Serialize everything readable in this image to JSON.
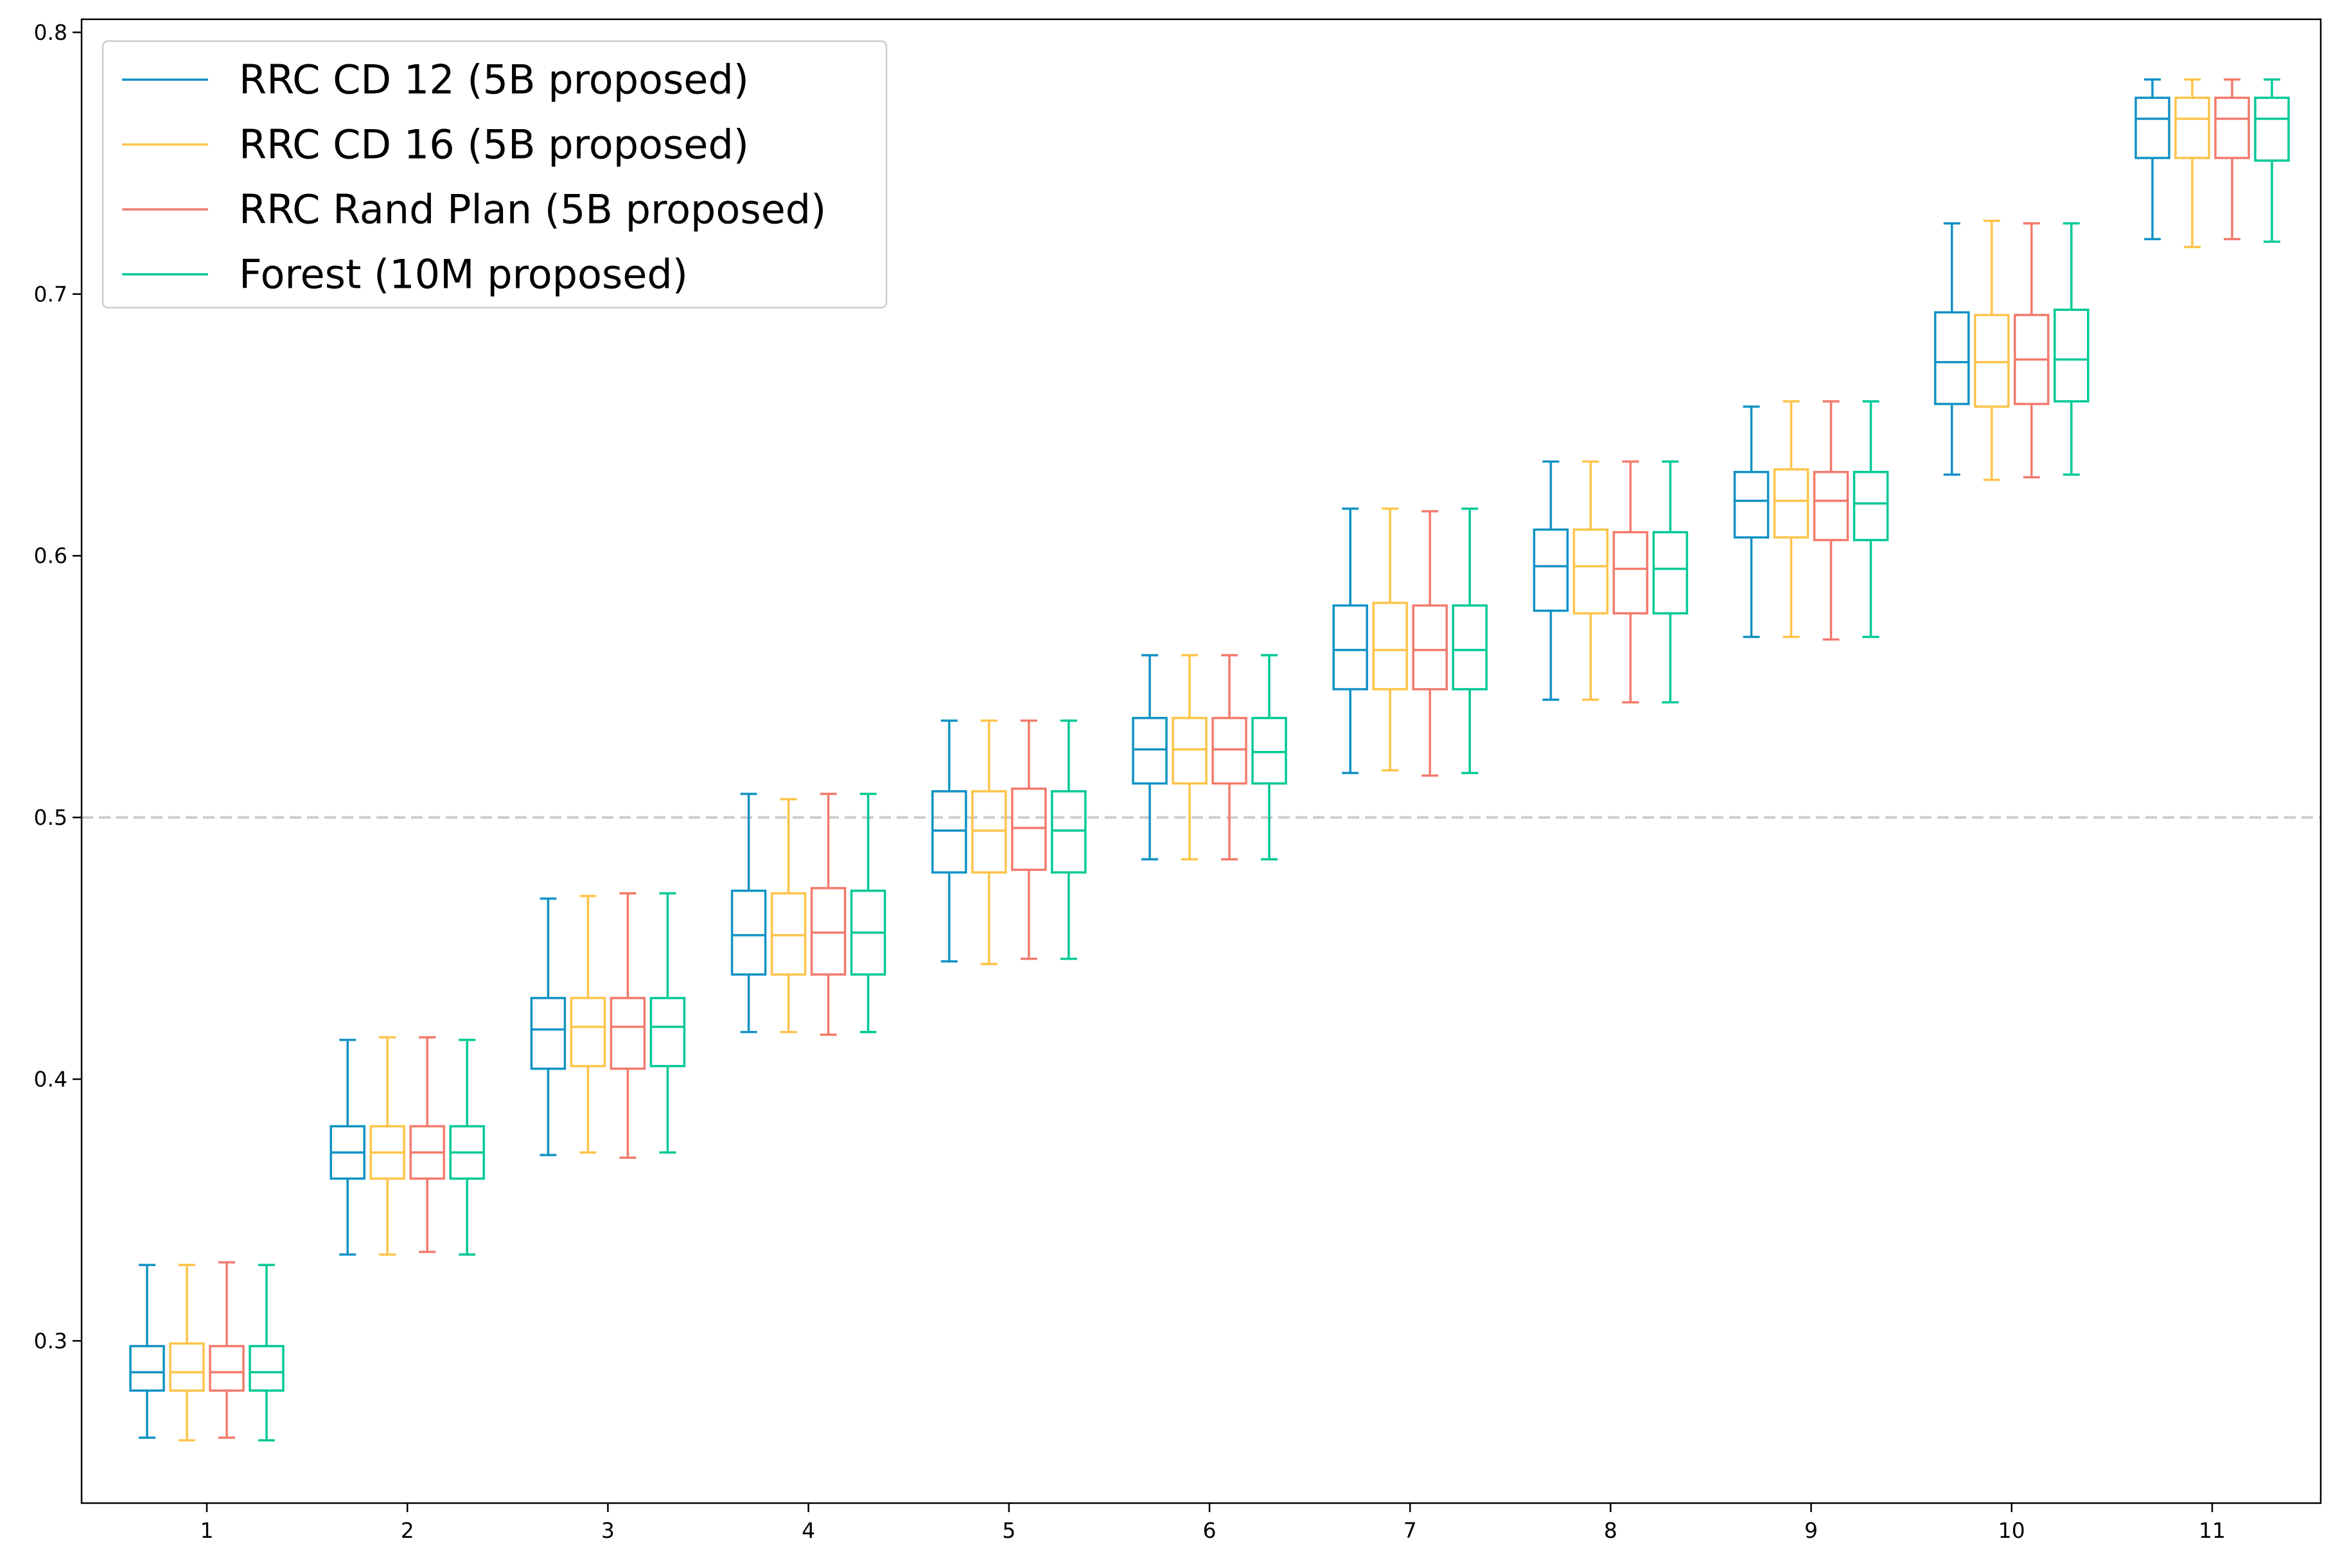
{
  "chart_data": {
    "type": "box",
    "title": "",
    "xlabel": "",
    "ylabel": "",
    "categories": [
      "1",
      "2",
      "3",
      "4",
      "5",
      "6",
      "7",
      "8",
      "9",
      "10",
      "11"
    ],
    "ylim": [
      0.238,
      0.805
    ],
    "yticks": [
      "0.3",
      "0.4",
      "0.5",
      "0.6",
      "0.7",
      "0.8"
    ],
    "reference_line": {
      "y": 0.5,
      "style": "dashed",
      "color": "#cccccc"
    },
    "grid": false,
    "legend": {
      "placement": "top-left"
    },
    "series": [
      {
        "name": "RRC CD 12 (5B proposed)",
        "color": "#1192c4",
        "boxes": [
          {
            "whislo": 0.263,
            "q1": 0.281,
            "med": 0.288,
            "q3": 0.298,
            "whishi": 0.329
          },
          {
            "whislo": 0.333,
            "q1": 0.362,
            "med": 0.372,
            "q3": 0.382,
            "whishi": 0.415
          },
          {
            "whislo": 0.371,
            "q1": 0.404,
            "med": 0.419,
            "q3": 0.431,
            "whishi": 0.469
          },
          {
            "whislo": 0.418,
            "q1": 0.44,
            "med": 0.455,
            "q3": 0.472,
            "whishi": 0.509
          },
          {
            "whislo": 0.445,
            "q1": 0.479,
            "med": 0.495,
            "q3": 0.51,
            "whishi": 0.537
          },
          {
            "whislo": 0.484,
            "q1": 0.513,
            "med": 0.526,
            "q3": 0.538,
            "whishi": 0.562
          },
          {
            "whislo": 0.517,
            "q1": 0.549,
            "med": 0.564,
            "q3": 0.581,
            "whishi": 0.618
          },
          {
            "whislo": 0.545,
            "q1": 0.579,
            "med": 0.596,
            "q3": 0.61,
            "whishi": 0.636
          },
          {
            "whislo": 0.569,
            "q1": 0.607,
            "med": 0.621,
            "q3": 0.632,
            "whishi": 0.657
          },
          {
            "whislo": 0.631,
            "q1": 0.658,
            "med": 0.674,
            "q3": 0.693,
            "whishi": 0.727
          },
          {
            "whislo": 0.721,
            "q1": 0.752,
            "med": 0.767,
            "q3": 0.775,
            "whishi": 0.782
          }
        ]
      },
      {
        "name": "RRC CD 16 (5B proposed)",
        "color": "#fec349",
        "boxes": [
          {
            "whislo": 0.262,
            "q1": 0.281,
            "med": 0.288,
            "q3": 0.299,
            "whishi": 0.329
          },
          {
            "whislo": 0.333,
            "q1": 0.362,
            "med": 0.372,
            "q3": 0.382,
            "whishi": 0.416
          },
          {
            "whislo": 0.372,
            "q1": 0.405,
            "med": 0.42,
            "q3": 0.431,
            "whishi": 0.47
          },
          {
            "whislo": 0.418,
            "q1": 0.44,
            "med": 0.455,
            "q3": 0.471,
            "whishi": 0.507
          },
          {
            "whislo": 0.444,
            "q1": 0.479,
            "med": 0.495,
            "q3": 0.51,
            "whishi": 0.537
          },
          {
            "whislo": 0.484,
            "q1": 0.513,
            "med": 0.526,
            "q3": 0.538,
            "whishi": 0.562
          },
          {
            "whislo": 0.518,
            "q1": 0.549,
            "med": 0.564,
            "q3": 0.582,
            "whishi": 0.618
          },
          {
            "whislo": 0.545,
            "q1": 0.578,
            "med": 0.596,
            "q3": 0.61,
            "whishi": 0.636
          },
          {
            "whislo": 0.569,
            "q1": 0.607,
            "med": 0.621,
            "q3": 0.633,
            "whishi": 0.659
          },
          {
            "whislo": 0.629,
            "q1": 0.657,
            "med": 0.674,
            "q3": 0.692,
            "whishi": 0.728
          },
          {
            "whislo": 0.718,
            "q1": 0.752,
            "med": 0.767,
            "q3": 0.775,
            "whishi": 0.782
          }
        ]
      },
      {
        "name": "RRC Rand Plan (5B proposed)",
        "color": "#f27a6c",
        "boxes": [
          {
            "whislo": 0.263,
            "q1": 0.281,
            "med": 0.288,
            "q3": 0.298,
            "whishi": 0.33
          },
          {
            "whislo": 0.334,
            "q1": 0.362,
            "med": 0.372,
            "q3": 0.382,
            "whishi": 0.416
          },
          {
            "whislo": 0.37,
            "q1": 0.404,
            "med": 0.42,
            "q3": 0.431,
            "whishi": 0.471
          },
          {
            "whislo": 0.417,
            "q1": 0.44,
            "med": 0.456,
            "q3": 0.473,
            "whishi": 0.509
          },
          {
            "whislo": 0.446,
            "q1": 0.48,
            "med": 0.496,
            "q3": 0.511,
            "whishi": 0.537
          },
          {
            "whislo": 0.484,
            "q1": 0.513,
            "med": 0.526,
            "q3": 0.538,
            "whishi": 0.562
          },
          {
            "whislo": 0.516,
            "q1": 0.549,
            "med": 0.564,
            "q3": 0.581,
            "whishi": 0.617
          },
          {
            "whislo": 0.544,
            "q1": 0.578,
            "med": 0.595,
            "q3": 0.609,
            "whishi": 0.636
          },
          {
            "whislo": 0.568,
            "q1": 0.606,
            "med": 0.621,
            "q3": 0.632,
            "whishi": 0.659
          },
          {
            "whislo": 0.63,
            "q1": 0.658,
            "med": 0.675,
            "q3": 0.692,
            "whishi": 0.727
          },
          {
            "whislo": 0.721,
            "q1": 0.752,
            "med": 0.767,
            "q3": 0.775,
            "whishi": 0.782
          }
        ]
      },
      {
        "name": "Forest (10M proposed)",
        "color": "#00c996",
        "boxes": [
          {
            "whislo": 0.262,
            "q1": 0.281,
            "med": 0.288,
            "q3": 0.298,
            "whishi": 0.329
          },
          {
            "whislo": 0.333,
            "q1": 0.362,
            "med": 0.372,
            "q3": 0.382,
            "whishi": 0.415
          },
          {
            "whislo": 0.372,
            "q1": 0.405,
            "med": 0.42,
            "q3": 0.431,
            "whishi": 0.471
          },
          {
            "whislo": 0.418,
            "q1": 0.44,
            "med": 0.456,
            "q3": 0.472,
            "whishi": 0.509
          },
          {
            "whislo": 0.446,
            "q1": 0.479,
            "med": 0.495,
            "q3": 0.51,
            "whishi": 0.537
          },
          {
            "whislo": 0.484,
            "q1": 0.513,
            "med": 0.525,
            "q3": 0.538,
            "whishi": 0.562
          },
          {
            "whislo": 0.517,
            "q1": 0.549,
            "med": 0.564,
            "q3": 0.581,
            "whishi": 0.618
          },
          {
            "whislo": 0.544,
            "q1": 0.578,
            "med": 0.595,
            "q3": 0.609,
            "whishi": 0.636
          },
          {
            "whislo": 0.569,
            "q1": 0.606,
            "med": 0.62,
            "q3": 0.632,
            "whishi": 0.659
          },
          {
            "whislo": 0.631,
            "q1": 0.659,
            "med": 0.675,
            "q3": 0.694,
            "whishi": 0.727
          },
          {
            "whislo": 0.72,
            "q1": 0.751,
            "med": 0.767,
            "q3": 0.775,
            "whishi": 0.782
          }
        ]
      }
    ]
  }
}
